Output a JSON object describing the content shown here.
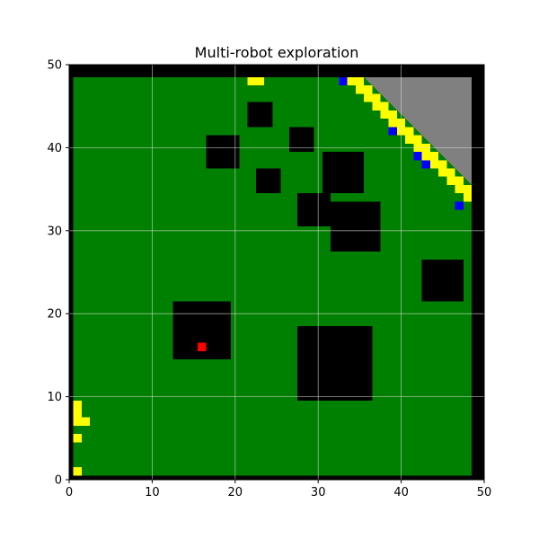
{
  "chart_data": {
    "type": "heatmap",
    "title": "Multi-robot exploration",
    "xlabel": "",
    "ylabel": "",
    "xlim": [
      0,
      50
    ],
    "ylim": [
      0,
      50
    ],
    "x_ticks": [
      0,
      10,
      20,
      30,
      40,
      50
    ],
    "y_ticks": [
      0,
      10,
      20,
      30,
      40,
      50
    ],
    "grid": true,
    "cell_size": 1,
    "colors": {
      "free": "#008000",
      "obstacle": "#000000",
      "unknown": "#808080",
      "frontier": "#ffff00",
      "robot": "#0000ff",
      "target": "#ff0000",
      "grid": "#d9d9d9"
    },
    "free_area": {
      "x": [
        0.5,
        48.5
      ],
      "y": [
        0.5,
        48.5
      ]
    },
    "boundary_walls": [
      {
        "x0": 0,
        "x1": 50,
        "y0": 48.5,
        "y1": 50
      },
      {
        "x0": 0,
        "x1": 50,
        "y0": 0,
        "y1": 0.5
      },
      {
        "x0": 0,
        "x1": 0.5,
        "y0": 0,
        "y1": 50
      },
      {
        "x0": 48.5,
        "x1": 50,
        "y0": 0,
        "y1": 50
      }
    ],
    "obstacles": [
      {
        "x0": 21.5,
        "x1": 24.5,
        "y0": 42.5,
        "y1": 45.5
      },
      {
        "x0": 16.5,
        "x1": 20.5,
        "y0": 37.5,
        "y1": 41.5
      },
      {
        "x0": 26.5,
        "x1": 29.5,
        "y0": 39.5,
        "y1": 42.5
      },
      {
        "x0": 22.5,
        "x1": 25.5,
        "y0": 34.5,
        "y1": 37.5
      },
      {
        "x0": 30.5,
        "x1": 35.5,
        "y0": 34.5,
        "y1": 39.5
      },
      {
        "x0": 27.5,
        "x1": 31.5,
        "y0": 30.5,
        "y1": 34.5
      },
      {
        "x0": 31.5,
        "x1": 37.5,
        "y0": 27.5,
        "y1": 33.5
      },
      {
        "x0": 42.5,
        "x1": 47.5,
        "y0": 21.5,
        "y1": 26.5
      },
      {
        "x0": 12.5,
        "x1": 19.5,
        "y0": 14.5,
        "y1": 21.5
      },
      {
        "x0": 27.5,
        "x1": 36.5,
        "y0": 9.5,
        "y1": 18.5
      }
    ],
    "unknown_region": {
      "polygon": [
        [
          35.5,
          48.5
        ],
        [
          48.5,
          48.5
        ],
        [
          48.5,
          35.5
        ]
      ]
    },
    "frontier_cells": [
      {
        "x": 22,
        "y": 48
      },
      {
        "x": 23,
        "y": 48
      },
      {
        "x": 34,
        "y": 48
      },
      {
        "x": 35,
        "y": 48
      },
      {
        "x": 35,
        "y": 47
      },
      {
        "x": 36,
        "y": 47
      },
      {
        "x": 36,
        "y": 46
      },
      {
        "x": 37,
        "y": 46
      },
      {
        "x": 37,
        "y": 45
      },
      {
        "x": 38,
        "y": 45
      },
      {
        "x": 38,
        "y": 44
      },
      {
        "x": 39,
        "y": 44
      },
      {
        "x": 39,
        "y": 43
      },
      {
        "x": 40,
        "y": 43
      },
      {
        "x": 40,
        "y": 42
      },
      {
        "x": 41,
        "y": 42
      },
      {
        "x": 41,
        "y": 41
      },
      {
        "x": 42,
        "y": 41
      },
      {
        "x": 42,
        "y": 40
      },
      {
        "x": 43,
        "y": 40
      },
      {
        "x": 43,
        "y": 39
      },
      {
        "x": 44,
        "y": 39
      },
      {
        "x": 44,
        "y": 38
      },
      {
        "x": 45,
        "y": 38
      },
      {
        "x": 45,
        "y": 37
      },
      {
        "x": 46,
        "y": 37
      },
      {
        "x": 46,
        "y": 36
      },
      {
        "x": 47,
        "y": 36
      },
      {
        "x": 47,
        "y": 35
      },
      {
        "x": 48,
        "y": 35
      },
      {
        "x": 48,
        "y": 34
      },
      {
        "x": 1,
        "y": 9
      },
      {
        "x": 1,
        "y": 8
      },
      {
        "x": 1,
        "y": 7
      },
      {
        "x": 2,
        "y": 7
      },
      {
        "x": 1,
        "y": 5
      },
      {
        "x": 1,
        "y": 1
      }
    ],
    "robot_cells": [
      {
        "x": 33,
        "y": 48
      },
      {
        "x": 39,
        "y": 42
      },
      {
        "x": 42,
        "y": 39
      },
      {
        "x": 43,
        "y": 38
      },
      {
        "x": 47,
        "y": 33
      }
    ],
    "target_cells": [
      {
        "x": 16,
        "y": 16
      }
    ]
  }
}
